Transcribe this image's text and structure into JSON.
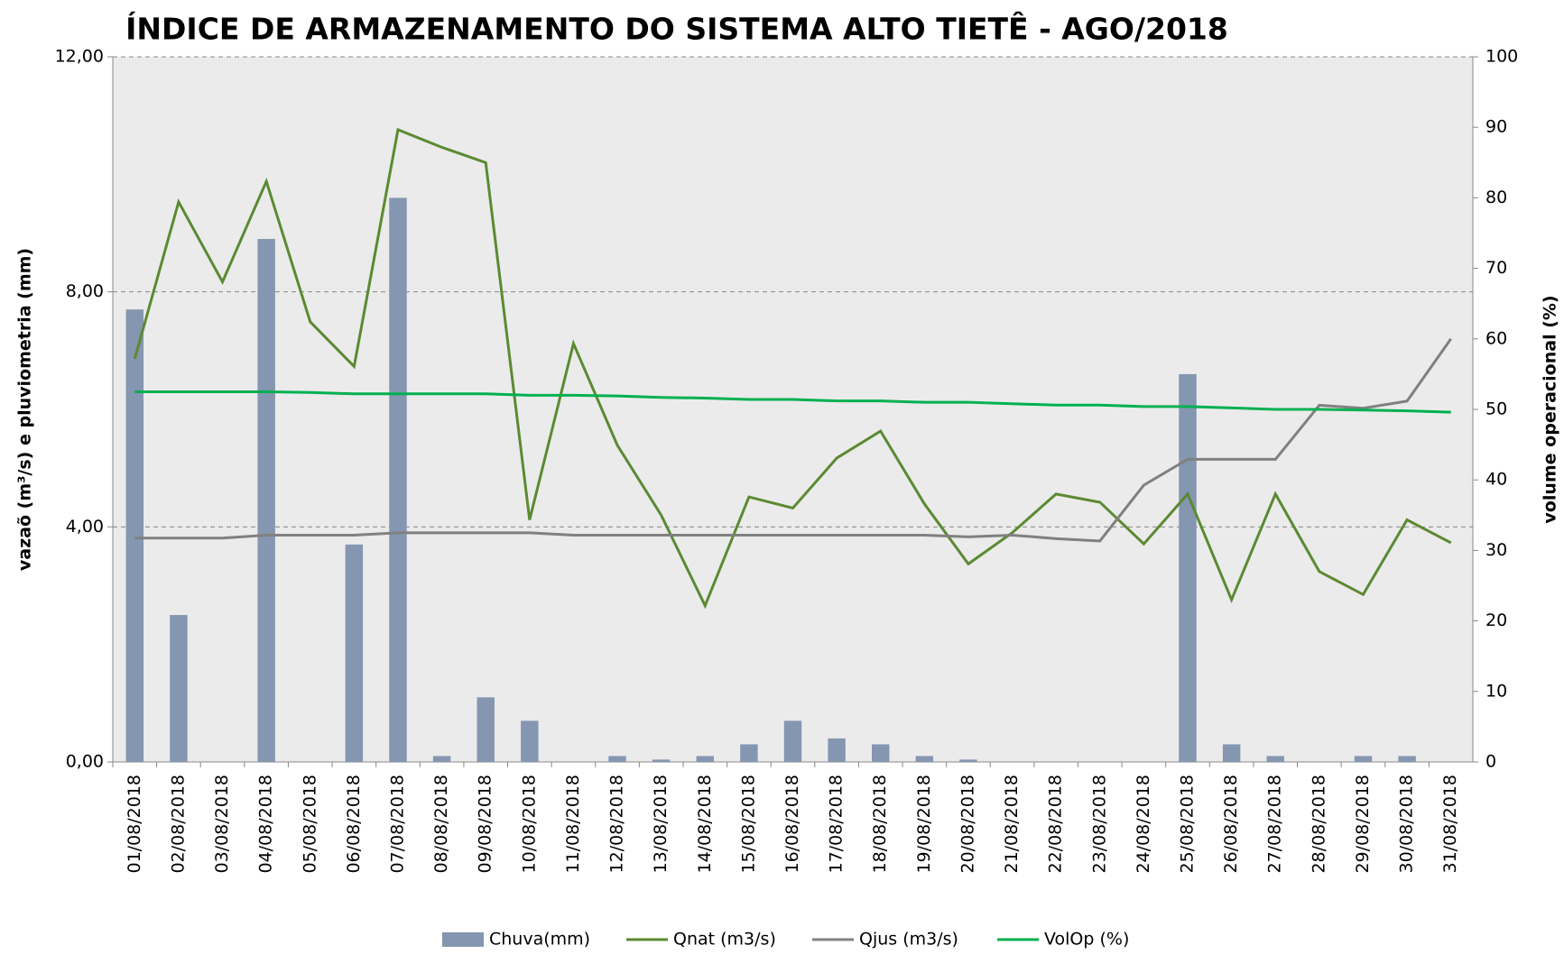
{
  "chart_data": {
    "type": "combo",
    "title": "ÍNDICE DE ARMAZENAMENTO DO SISTEMA ALTO TIETÊ - AGO/2018",
    "ylabel": "vazaõ (m³/s) e pluviometria (mm)",
    "y2label": "volume operacional (%)",
    "categories": [
      "01/08/2018",
      "02/08/2018",
      "03/08/2018",
      "04/08/2018",
      "05/08/2018",
      "06/08/2018",
      "07/08/2018",
      "08/08/2018",
      "09/08/2018",
      "10/08/2018",
      "11/08/2018",
      "12/08/2018",
      "13/08/2018",
      "14/08/2018",
      "15/08/2018",
      "16/08/2018",
      "17/08/2018",
      "18/08/2018",
      "19/08/2018",
      "20/08/2018",
      "21/08/2018",
      "22/08/2018",
      "23/08/2018",
      "24/08/2018",
      "25/08/2018",
      "26/08/2018",
      "27/08/2018",
      "28/08/2018",
      "29/08/2018",
      "30/08/2018",
      "31/08/2018"
    ],
    "series": [
      {
        "name": "Chuva(mm)",
        "type": "bar",
        "color": "#8496b0",
        "values": [
          7.7,
          2.5,
          0,
          8.9,
          0,
          3.7,
          9.6,
          0.1,
          1.1,
          0.7,
          0,
          0.1,
          0.04,
          0.1,
          0.3,
          0.7,
          0.4,
          0.3,
          0.1,
          0.04,
          0,
          0,
          0,
          0,
          6.6,
          0.3,
          0.1,
          0,
          0.1,
          0.1,
          0
        ]
      },
      {
        "name": "Qnat (m3/s)",
        "type": "line",
        "color": "#5b8a32",
        "values": [
          6.86,
          9.53,
          8.17,
          9.88,
          7.49,
          6.73,
          10.76,
          10.46,
          10.2,
          4.12,
          7.12,
          5.39,
          4.2,
          2.66,
          4.51,
          4.32,
          5.17,
          5.63,
          4.39,
          3.37,
          3.9,
          4.56,
          4.42,
          3.71,
          4.56,
          2.76,
          4.56,
          3.24,
          2.85,
          4.12,
          3.73
        ]
      },
      {
        "name": "Qjus (m3/s)",
        "type": "line",
        "color": "#808080",
        "values": [
          3.81,
          3.81,
          3.81,
          3.86,
          3.86,
          3.86,
          3.9,
          3.9,
          3.9,
          3.9,
          3.86,
          3.86,
          3.86,
          3.86,
          3.86,
          3.86,
          3.86,
          3.86,
          3.86,
          3.83,
          3.86,
          3.8,
          3.76,
          4.71,
          5.15,
          5.15,
          5.15,
          6.07,
          6.02,
          6.14,
          7.2
        ]
      },
      {
        "name": "VolOp (%)",
        "type": "line",
        "color": "#00b050",
        "axis": "y2",
        "values": [
          52.5,
          52.5,
          52.5,
          52.5,
          52.4,
          52.2,
          52.2,
          52.2,
          52.2,
          52.0,
          52.0,
          51.9,
          51.7,
          51.6,
          51.4,
          51.4,
          51.2,
          51.2,
          51.0,
          51.0,
          50.8,
          50.6,
          50.6,
          50.4,
          50.4,
          50.2,
          50.0,
          50.0,
          49.9,
          49.8,
          49.6
        ]
      }
    ],
    "ylim": [
      0,
      12
    ],
    "yticks": [
      {
        "value": 0,
        "label": "0,00"
      },
      {
        "value": 4,
        "label": "4,00"
      },
      {
        "value": 8,
        "label": "8,00"
      },
      {
        "value": 12,
        "label": "12,00"
      }
    ],
    "y2lim": [
      0,
      100
    ],
    "y2ticks": [
      0,
      10,
      20,
      30,
      40,
      50,
      60,
      70,
      80,
      90,
      100
    ],
    "grid": true,
    "legend": "bottom"
  }
}
